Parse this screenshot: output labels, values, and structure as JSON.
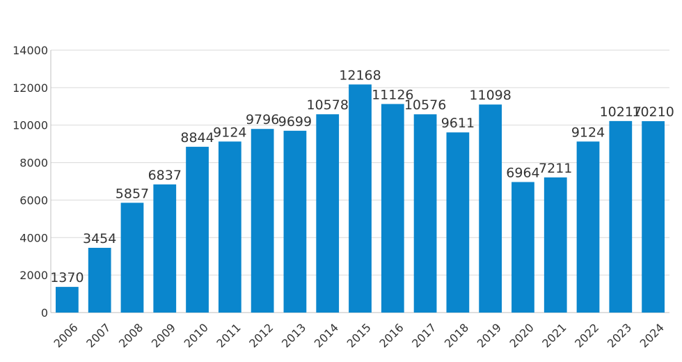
{
  "chart_data": {
    "type": "bar",
    "categories": [
      "2006",
      "2007",
      "2008",
      "2009",
      "2010",
      "2011",
      "2012",
      "2013",
      "2014",
      "2015",
      "2016",
      "2017",
      "2018",
      "2019",
      "2020",
      "2021",
      "2022",
      "2023",
      "2024"
    ],
    "values": [
      1370,
      3454,
      5857,
      6837,
      8844,
      9124,
      9796,
      9699,
      10578,
      12168,
      11126,
      10576,
      9611,
      11098,
      6964,
      7211,
      9124,
      10217,
      10210
    ],
    "ylim": [
      0,
      14000
    ],
    "yticks": [
      0,
      2000,
      4000,
      6000,
      8000,
      10000,
      12000,
      14000
    ],
    "grid": true,
    "legend": "none",
    "data_labels": true,
    "bar_color": "#0a86cd"
  }
}
